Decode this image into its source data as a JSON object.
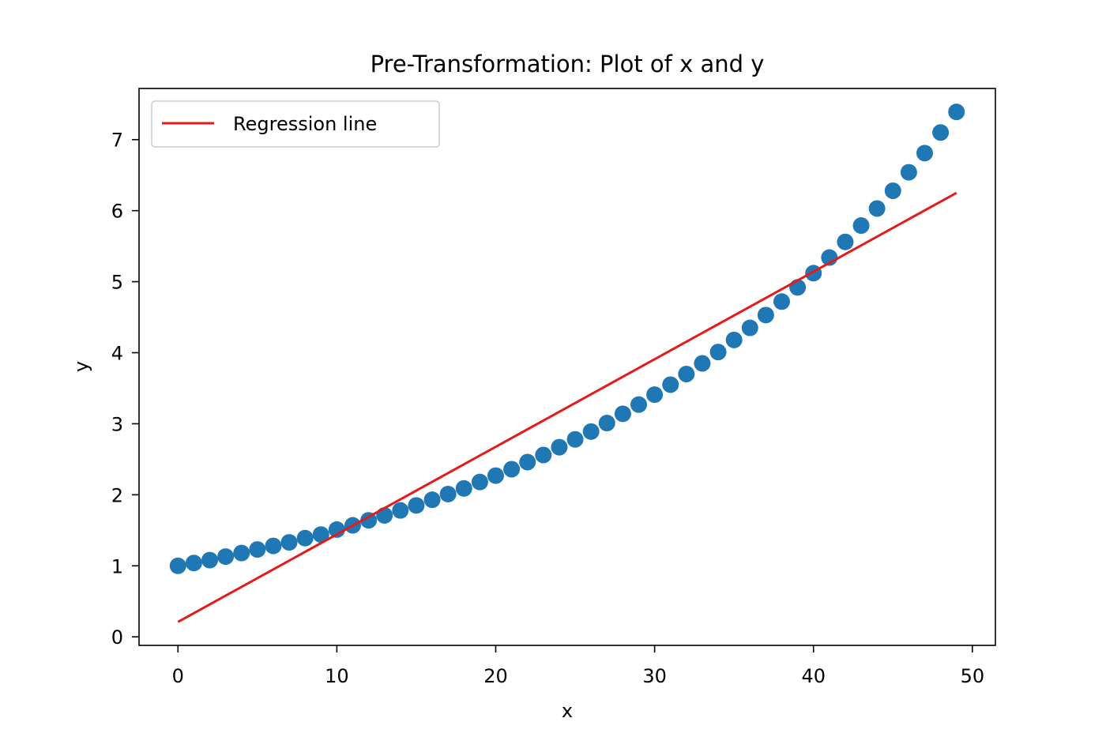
{
  "chart_data": {
    "type": "scatter",
    "title": "Pre-Transformation: Plot of x and y",
    "xlabel": "x",
    "ylabel": "y",
    "xlim": [
      -2.45,
      51.45
    ],
    "ylim": [
      -0.12,
      7.72
    ],
    "xticks": [
      0,
      10,
      20,
      30,
      40,
      50
    ],
    "yticks": [
      0,
      1,
      2,
      3,
      4,
      5,
      6,
      7
    ],
    "grid": false,
    "legend": {
      "position": "top-left",
      "entries": [
        "Regression line"
      ]
    },
    "colors": {
      "points": "#1f77b4",
      "line": "#e41a1c"
    },
    "series": [
      {
        "kind": "scatter",
        "x": [
          0,
          1,
          2,
          3,
          4,
          5,
          6,
          7,
          8,
          9,
          10,
          11,
          12,
          13,
          14,
          15,
          16,
          17,
          18,
          19,
          20,
          21,
          22,
          23,
          24,
          25,
          26,
          27,
          28,
          29,
          30,
          31,
          32,
          33,
          34,
          35,
          36,
          37,
          38,
          39,
          40,
          41,
          42,
          43,
          44,
          45,
          46,
          47,
          48,
          49
        ],
        "y": [
          1.0,
          1.04,
          1.08,
          1.13,
          1.18,
          1.23,
          1.28,
          1.33,
          1.39,
          1.44,
          1.51,
          1.57,
          1.64,
          1.71,
          1.78,
          1.85,
          1.93,
          2.01,
          2.09,
          2.18,
          2.27,
          2.36,
          2.46,
          2.56,
          2.67,
          2.78,
          2.89,
          3.01,
          3.14,
          3.27,
          3.41,
          3.55,
          3.7,
          3.85,
          4.01,
          4.18,
          4.35,
          4.53,
          4.72,
          4.92,
          5.12,
          5.34,
          5.56,
          5.79,
          6.03,
          6.28,
          6.54,
          6.81,
          7.1,
          7.39
        ]
      },
      {
        "name": "Regression line",
        "kind": "line",
        "x": [
          0,
          49
        ],
        "y": [
          0.21,
          6.25
        ]
      }
    ]
  }
}
